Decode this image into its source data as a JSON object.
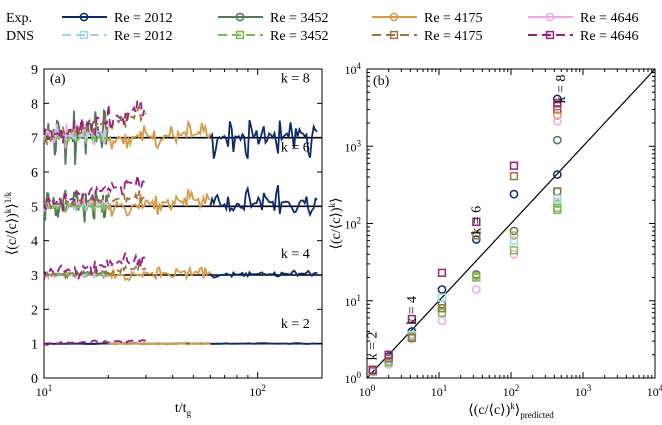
{
  "legend": {
    "row_labels": [
      "Exp.",
      "DNS"
    ],
    "entries": [
      {
        "text": "Re = 2012",
        "color": "#0d2a6b"
      },
      {
        "text": "Re = 3452",
        "color": "#4e7a56"
      },
      {
        "text": "Re = 4175",
        "color": "#d99b47"
      },
      {
        "text": "Re = 4646",
        "color": "#f0a6e8"
      }
    ],
    "dns_entries": [
      {
        "text": "Re = 2012",
        "color": "#9ad9ea"
      },
      {
        "text": "Re = 3452",
        "color": "#74c04a"
      },
      {
        "text": "Re = 4175",
        "color": "#a0733c"
      },
      {
        "text": "Re = 4646",
        "color": "#9b1f7f"
      }
    ]
  },
  "chart_data": [
    {
      "type": "line",
      "panel_label": "(a)",
      "xlabel": "t/t",
      "xlabel_sub": "g",
      "ylabel": "⟨(c/⟨c⟩)",
      "ylabel_sup": "k",
      "ylabel_tail": "⟩",
      "ylabel_exp": "1/k",
      "xscale": "log",
      "xlim": [
        10,
        200
      ],
      "ylim": [
        0,
        9
      ],
      "xticks": [
        {
          "v": 10,
          "base": "10",
          "exp": "1"
        },
        {
          "v": 100,
          "base": "10",
          "exp": "2"
        }
      ],
      "yticks": [
        0,
        1,
        2,
        3,
        4,
        5,
        6,
        7,
        8,
        9
      ],
      "reference_lines": [
        1,
        3,
        5,
        7
      ],
      "annotations": [
        {
          "text": "k = 8",
          "x": 150,
          "y": 8.6
        },
        {
          "text": "k = 6",
          "x": 150,
          "y": 6.6
        },
        {
          "text": "k = 4",
          "x": 150,
          "y": 3.5
        },
        {
          "text": "k = 2",
          "x": 150,
          "y": 1.45
        }
      ],
      "groups": [
        {
          "k": 8,
          "baseline": 7,
          "series": [
            {
              "name": "Exp. Re = 2012",
              "x_range": [
                60,
                190
              ],
              "amp": 0.8,
              "drift": 0.15
            },
            {
              "name": "Exp. Re = 3452",
              "x_range": [
                10,
                20
              ],
              "amp": 0.9,
              "drift": 0.2
            },
            {
              "name": "Exp. Re = 4175",
              "x_range": [
                20,
                60
              ],
              "amp": 0.4,
              "drift": 0.1
            },
            {
              "name": "Exp. Re = 4646",
              "x_range": [
                10,
                20
              ],
              "amp": 0.4,
              "drift": 0.2
            },
            {
              "name": "DNS Re = 2012",
              "x_range": [
                10,
                20
              ],
              "amp": 0.2,
              "drift": 0.05
            },
            {
              "name": "DNS Re = 3452",
              "x_range": [
                10,
                20
              ],
              "amp": 0.2,
              "drift": 0.0
            },
            {
              "name": "DNS Re = 4175",
              "x_range": [
                10,
                30
              ],
              "amp": 0.3,
              "drift": 0.7
            },
            {
              "name": "DNS Re = 4646",
              "x_range": [
                10,
                30
              ],
              "amp": 0.4,
              "drift": 0.9
            }
          ]
        },
        {
          "k": 6,
          "baseline": 5,
          "series": [
            {
              "name": "Exp. Re = 2012",
              "x_range": [
                60,
                190
              ],
              "amp": 0.5,
              "drift": 0.2
            },
            {
              "name": "Exp. Re = 3452",
              "x_range": [
                10,
                20
              ],
              "amp": 0.6,
              "drift": 0.1
            },
            {
              "name": "Exp. Re = 4175",
              "x_range": [
                20,
                60
              ],
              "amp": 0.4,
              "drift": 0.2
            },
            {
              "name": "Exp. Re = 4646",
              "x_range": [
                10,
                20
              ],
              "amp": 0.2,
              "drift": 0.1
            },
            {
              "name": "DNS Re = 2012",
              "x_range": [
                10,
                20
              ],
              "amp": 0.15,
              "drift": 0.0
            },
            {
              "name": "DNS Re = 3452",
              "x_range": [
                10,
                20
              ],
              "amp": 0.15,
              "drift": 0.0
            },
            {
              "name": "DNS Re = 4175",
              "x_range": [
                10,
                30
              ],
              "amp": 0.2,
              "drift": 0.3
            },
            {
              "name": "DNS Re = 4646",
              "x_range": [
                10,
                30
              ],
              "amp": 0.3,
              "drift": 0.8
            }
          ]
        },
        {
          "k": 4,
          "baseline": 3,
          "series": [
            {
              "name": "Exp. Re = 2012",
              "x_range": [
                60,
                190
              ],
              "amp": 0.1,
              "drift": 0.05
            },
            {
              "name": "Exp. Re = 3452",
              "x_range": [
                10,
                20
              ],
              "amp": 0.1,
              "drift": 0.05
            },
            {
              "name": "Exp. Re = 4175",
              "x_range": [
                20,
                60
              ],
              "amp": 0.2,
              "drift": 0.1
            },
            {
              "name": "Exp. Re = 4646",
              "x_range": [
                10,
                20
              ],
              "amp": 0.08,
              "drift": 0.0
            },
            {
              "name": "DNS Re = 2012",
              "x_range": [
                10,
                20
              ],
              "amp": 0.05,
              "drift": 0.0
            },
            {
              "name": "DNS Re = 3452",
              "x_range": [
                10,
                20
              ],
              "amp": 0.05,
              "drift": 0.0
            },
            {
              "name": "DNS Re = 4175",
              "x_range": [
                10,
                30
              ],
              "amp": 0.15,
              "drift": 0.2
            },
            {
              "name": "DNS Re = 4646",
              "x_range": [
                10,
                30
              ],
              "amp": 0.3,
              "drift": 0.5
            }
          ]
        },
        {
          "k": 2,
          "baseline": 1,
          "series": [
            {
              "name": "Exp. Re = 2012",
              "x_range": [
                10,
                190
              ],
              "amp": 0.02,
              "drift": 0.0
            },
            {
              "name": "Exp. Re = 4175",
              "x_range": [
                20,
                60
              ],
              "amp": 0.03,
              "drift": 0.0
            },
            {
              "name": "DNS Re = 4646",
              "x_range": [
                10,
                30
              ],
              "amp": 0.05,
              "drift": 0.1
            }
          ]
        }
      ]
    },
    {
      "type": "scatter",
      "panel_label": "(b)",
      "xlabel": "⟨(c/⟨c⟩)",
      "xlabel_sup": "k",
      "xlabel_tail": "⟩",
      "xlabel_sub": "predicted",
      "ylabel": "⟨(c/⟨c⟩)",
      "ylabel_sup": "k",
      "ylabel_tail": "⟩",
      "xscale": "log",
      "yscale": "log",
      "xlim": [
        1,
        10000
      ],
      "ylim": [
        1,
        10000
      ],
      "xticks": [
        {
          "v": 1,
          "base": "10",
          "exp": "0"
        },
        {
          "v": 10,
          "base": "10",
          "exp": "1"
        },
        {
          "v": 100,
          "base": "10",
          "exp": "2"
        },
        {
          "v": 1000,
          "base": "10",
          "exp": "3"
        },
        {
          "v": 10000,
          "base": "10",
          "exp": "4"
        }
      ],
      "yticks": [
        {
          "v": 1,
          "base": "10",
          "exp": "0"
        },
        {
          "v": 10,
          "base": "10",
          "exp": "1"
        },
        {
          "v": 100,
          "base": "10",
          "exp": "2"
        },
        {
          "v": 1000,
          "base": "10",
          "exp": "3"
        },
        {
          "v": 10000,
          "base": "10",
          "exp": "4"
        }
      ],
      "identity_line": true,
      "annotations": [
        {
          "text": "k = 2",
          "x": 1.35,
          "y": 2.6
        },
        {
          "text": "k = 4",
          "x": 4.8,
          "y": 7.5
        },
        {
          "text": "k = 6",
          "x": 38,
          "y": 110
        },
        {
          "text": "k = 8",
          "x": 560,
          "y": 5500
        }
      ],
      "predicted_x": [
        1.2,
        1.2,
        3.9,
        11,
        34,
        110,
        440
      ],
      "k_points": [
        {
          "k": 2,
          "x": 1.2,
          "exp": [
            1.21,
            1.21,
            1.2,
            1.2
          ],
          "dns": [
            1.22,
            1.22,
            1.24,
            1.28
          ]
        },
        {
          "k": 4,
          "x": 4.2,
          "exp": [
            4.0,
            3.6,
            3.4,
            3.2
          ],
          "dns": [
            3.6,
            3.4,
            3.3,
            5.8
          ]
        },
        {
          "k": 6,
          "x": 33,
          "exp": [
            62,
            22,
            21,
            14
          ],
          "dns": [
            20,
            20,
            70,
            105
          ]
        },
        {
          "k": 8,
          "x": 440,
          "exp": [
            430,
            260,
            180,
            150
          ],
          "dns": [
            190,
            150,
            260,
            3000
          ]
        }
      ],
      "additional_points": [
        {
          "x": 2,
          "exp": [
            1.9,
            1.7,
            1.6,
            1.5
          ],
          "dns": [
            1.7,
            1.6,
            1.8,
            2.0
          ]
        },
        {
          "x": 11,
          "exp": [
            14,
            9,
            8,
            5.5
          ],
          "dns": [
            11,
            7,
            8,
            23
          ]
        },
        {
          "x": 110,
          "exp": [
            240,
            80,
            70,
            40
          ],
          "dns": [
            60,
            45,
            410,
            560
          ]
        },
        {
          "x": 440,
          "exp": [
            4100,
            1200,
            2500,
            2100
          ],
          "dns": [
            210,
            160,
            3300,
            3600
          ]
        }
      ]
    }
  ]
}
